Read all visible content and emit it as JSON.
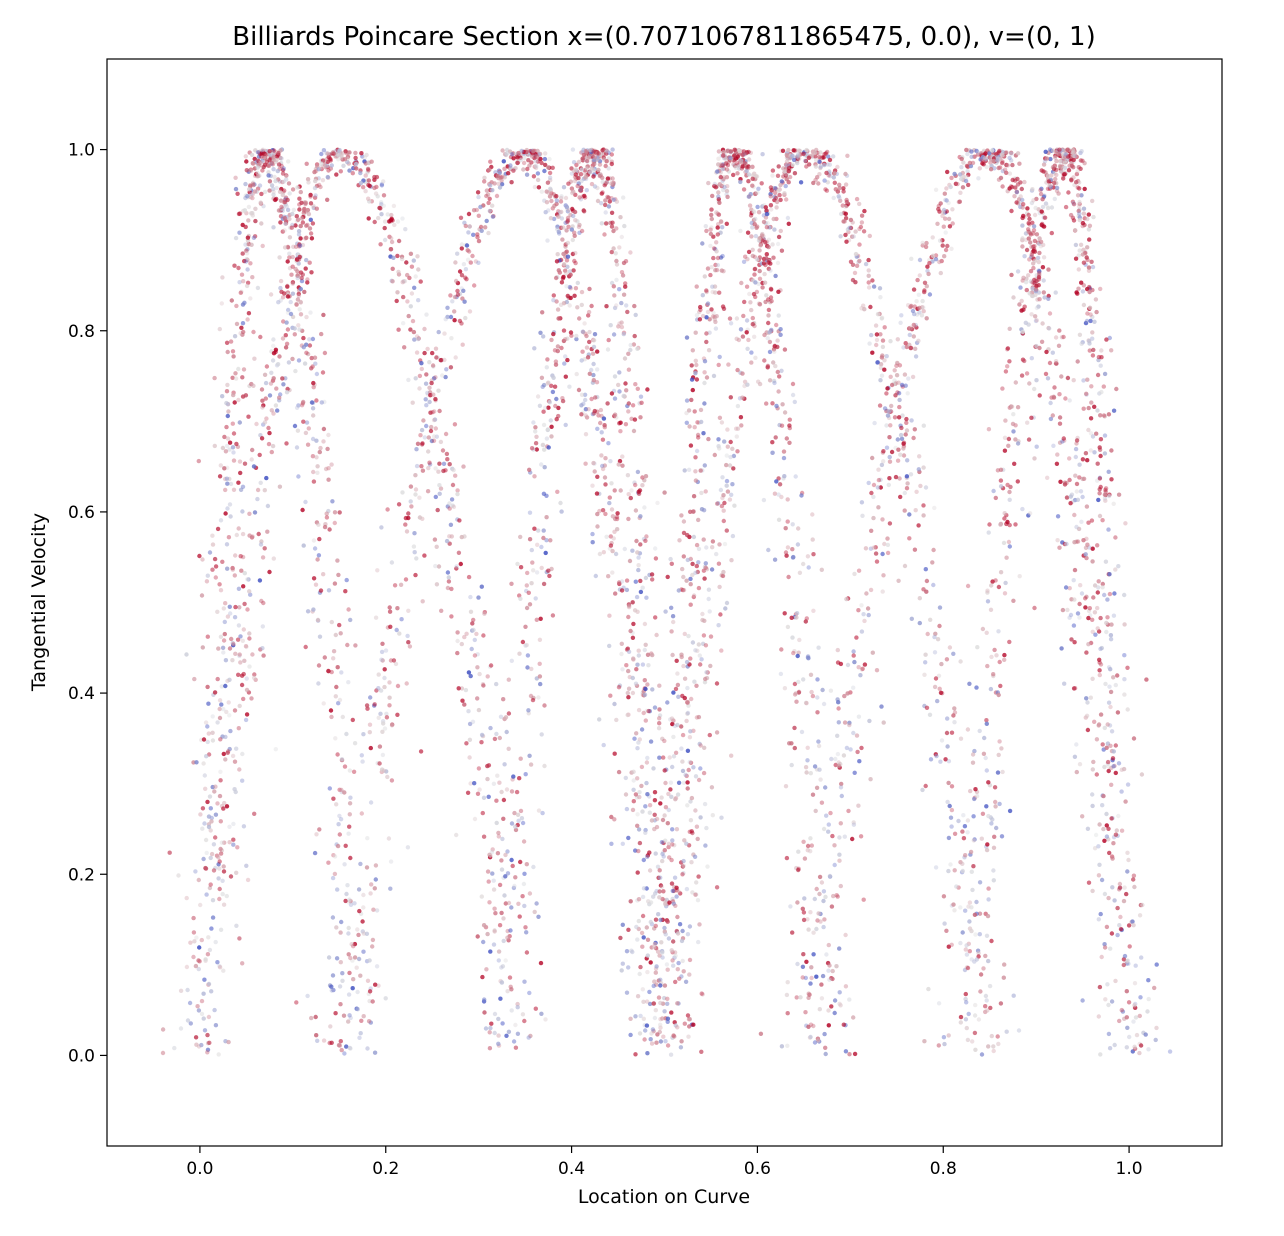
{
  "chart_data": {
    "type": "scatter",
    "title": "Billiards Poincare Section x=(0.7071067811865475, 0.0),  v=(0, 1)",
    "xlabel": "Location on Curve",
    "ylabel": "Tangential Velocity",
    "xlim": [
      -0.1,
      1.1
    ],
    "ylim": [
      -0.1,
      1.1
    ],
    "xticks": [
      "0.0",
      "0.2",
      "0.4",
      "0.6",
      "0.8",
      "1.0"
    ],
    "yticks": [
      "0.0",
      "0.2",
      "0.4",
      "0.6",
      "0.8",
      "1.0"
    ],
    "grid": false,
    "colormap": "coolwarm",
    "colors": {
      "low": "#3b4cc0",
      "mid": "#dddddd",
      "high": "#b40426"
    },
    "point_count_approx": 6000,
    "series": [
      {
        "x_range": [
          0.0,
          0.35
        ],
        "y_range": [
          0.0,
          1.0
        ],
        "apex_x": 0.15,
        "apex_y": 1.0
      },
      {
        "x_range": [
          0.15,
          0.5
        ],
        "y_range": [
          0.0,
          1.0
        ],
        "apex_x": 0.35,
        "apex_y": 1.0
      },
      {
        "x_range": [
          0.5,
          0.85
        ],
        "y_range": [
          0.0,
          1.0
        ],
        "apex_x": 0.65,
        "apex_y": 1.0
      },
      {
        "x_range": [
          0.65,
          1.0
        ],
        "y_range": [
          0.0,
          1.0
        ],
        "apex_x": 0.85,
        "apex_y": 1.0
      },
      {
        "x_range": [
          0.0,
          0.175
        ],
        "y_range": [
          0.0,
          1.0
        ],
        "apex_x": 0.07,
        "apex_y": 1.0
      },
      {
        "x_range": [
          0.325,
          0.5
        ],
        "y_range": [
          0.0,
          1.0
        ],
        "apex_x": 0.425,
        "apex_y": 1.0
      },
      {
        "x_range": [
          0.5,
          0.675
        ],
        "y_range": [
          0.0,
          1.0
        ],
        "apex_x": 0.575,
        "apex_y": 1.0
      },
      {
        "x_range": [
          0.825,
          1.0
        ],
        "y_range": [
          0.0,
          1.0
        ],
        "apex_x": 0.93,
        "apex_y": 1.0
      }
    ]
  }
}
